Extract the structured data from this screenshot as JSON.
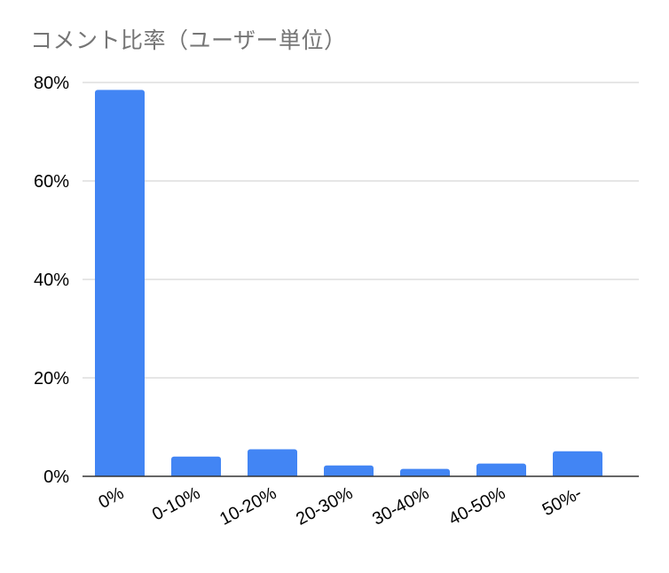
{
  "chart_data": {
    "type": "bar",
    "title": "コメント比率（ユーザー単位）",
    "xlabel": "",
    "ylabel": "",
    "categories": [
      "0%",
      "0-10%",
      "10-20%",
      "20-30%",
      "30-40%",
      "40-50%",
      "50%-"
    ],
    "values": [
      78.5,
      4.0,
      5.5,
      2.2,
      1.5,
      2.6,
      5.1
    ],
    "ylim": [
      0,
      80
    ],
    "yticks": [
      0,
      20,
      40,
      60,
      80
    ],
    "ytick_labels": [
      "0%",
      "20%",
      "40%",
      "60%",
      "80%"
    ],
    "bar_color": "#4285f4",
    "grid": true,
    "gridline_color": "#cccccc",
    "axis_color": "#333333"
  }
}
